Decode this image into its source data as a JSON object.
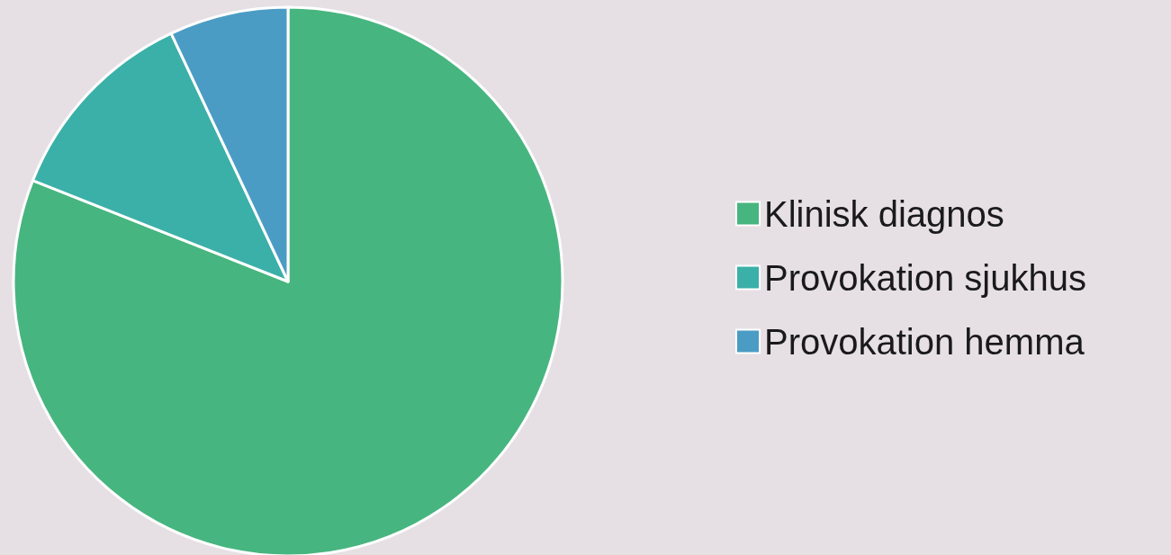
{
  "chart_data": {
    "type": "pie",
    "categories": [
      "Klinisk diagnos",
      "Provokation sjukhus",
      "Provokation hemma"
    ],
    "values": [
      81,
      12,
      7
    ],
    "colors": [
      "#47b57f",
      "#3bb0a8",
      "#4b9cc4"
    ],
    "legend": "right"
  }
}
